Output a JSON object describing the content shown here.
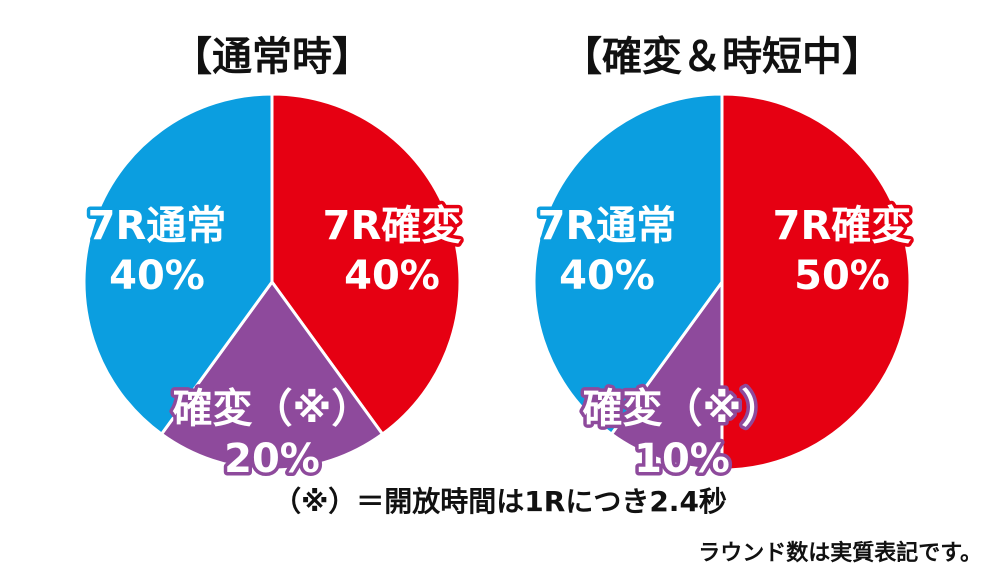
{
  "chart_data": [
    {
      "type": "pie",
      "title": "【通常時】",
      "slices": [
        {
          "label": "7R確変",
          "value_label": "40%",
          "value": 40,
          "color": "#e60012"
        },
        {
          "label": "確変（※）",
          "value_label": "20%",
          "value": 20,
          "color": "#8e4a9c"
        },
        {
          "label": "7R通常",
          "value_label": "40%",
          "value": 40,
          "color": "#0b9ee0"
        }
      ]
    },
    {
      "type": "pie",
      "title": "【確変＆時短中】",
      "slices": [
        {
          "label": "7R確変",
          "value_label": "50%",
          "value": 50,
          "color": "#e60012"
        },
        {
          "label": "確変（※）",
          "value_label": "10%",
          "value": 10,
          "color": "#8e4a9c"
        },
        {
          "label": "7R通常",
          "value_label": "40%",
          "value": 40,
          "color": "#0b9ee0"
        }
      ]
    }
  ],
  "footnote": "（※）＝開放時間は1Rにつき2.4秒",
  "note": "ラウンド数は実質表記です。"
}
